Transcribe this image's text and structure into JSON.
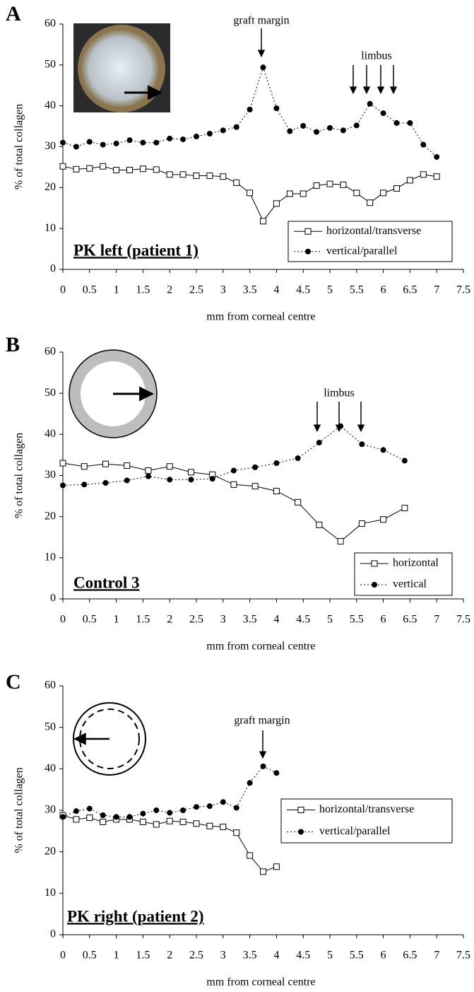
{
  "chart_data": [
    {
      "type": "line",
      "panel": "A",
      "label": "PK left (patient 1)",
      "annotations": [
        "graft margin",
        "limbus"
      ],
      "xlabel": "mm from corneal centre",
      "ylabel": "% of total collagen",
      "x": [
        0,
        0.25,
        0.5,
        0.75,
        1,
        1.25,
        1.5,
        1.75,
        2,
        2.25,
        2.5,
        2.75,
        3,
        3.25,
        3.5,
        3.75,
        4,
        4.25,
        4.5,
        4.75,
        5,
        5.25,
        5.5,
        5.75,
        6,
        6.25,
        6.5,
        6.75,
        7
      ],
      "series": [
        {
          "name": "horizontal/transverse",
          "color": "#000000",
          "line": "solid",
          "marker": "open-square",
          "values": [
            25.2,
            24.5,
            24.7,
            25.2,
            24.3,
            24.3,
            24.6,
            24.4,
            23.2,
            23.2,
            22.9,
            22.9,
            22.7,
            21.2,
            18.7,
            11.8,
            16.1,
            18.5,
            18.5,
            20.5,
            20.9,
            20.7,
            18.7,
            16.3,
            18.7,
            19.8,
            21.8,
            23.2,
            22.7
          ]
        },
        {
          "name": "vertical/parallel",
          "color": "#000000",
          "line": "dotted",
          "marker": "filled-circle",
          "values": [
            31,
            30,
            31.2,
            30.5,
            30.8,
            31.6,
            31,
            31,
            32,
            31.8,
            32.5,
            33.2,
            34,
            34.8,
            39.1,
            49.4,
            39.4,
            33.8,
            35.1,
            33.6,
            34.6,
            34,
            35.2,
            40.5,
            38.2,
            35.8,
            35.8,
            30.5,
            27.5
          ]
        }
      ],
      "xlim": [
        0,
        7.5
      ],
      "xticks": [
        0,
        0.5,
        1,
        1.5,
        2,
        2.5,
        3,
        3.5,
        4,
        4.5,
        5,
        5.5,
        6,
        6.5,
        7,
        7.5
      ],
      "ylim": [
        0,
        60
      ],
      "yticks": [
        0,
        10,
        20,
        30,
        40,
        50,
        60
      ],
      "grid": false,
      "legend": "lower-right"
    },
    {
      "type": "line",
      "panel": "B",
      "label": "Control 3",
      "annotations": [
        "limbus"
      ],
      "xlabel": "mm from corneal centre",
      "ylabel": "% of total collagen",
      "x": [
        0,
        0.4,
        0.8,
        1.2,
        1.6,
        2,
        2.4,
        2.8,
        3.2,
        3.6,
        4,
        4.4,
        4.8,
        5.2,
        5.6,
        6,
        6.4
      ],
      "series": [
        {
          "name": "horizontal",
          "color": "#000000",
          "line": "solid",
          "marker": "open-square",
          "values": [
            33,
            32.2,
            32.8,
            32.4,
            31.2,
            32.2,
            30.8,
            30.2,
            27.8,
            27.4,
            26.2,
            23.5,
            18,
            14,
            18.3,
            19.3,
            22.1
          ]
        },
        {
          "name": "vertical",
          "color": "#000000",
          "line": "dotted",
          "marker": "filled-circle",
          "values": [
            27.6,
            27.8,
            28.2,
            28.8,
            29.8,
            29,
            29,
            29.2,
            31.2,
            32,
            33,
            34.2,
            38,
            42,
            37.6,
            36.2,
            33.6
          ]
        }
      ],
      "xlim": [
        0,
        7.5
      ],
      "xticks": [
        0,
        0.5,
        1,
        1.5,
        2,
        2.5,
        3,
        3.5,
        4,
        4.5,
        5,
        5.5,
        6,
        6.5,
        7,
        7.5
      ],
      "ylim": [
        0,
        60
      ],
      "yticks": [
        0,
        10,
        20,
        30,
        40,
        50,
        60
      ],
      "grid": false,
      "legend": "lower-right"
    },
    {
      "type": "line",
      "panel": "C",
      "label": "PK right (patient 2)",
      "annotations": [
        "graft margin"
      ],
      "xlabel": "mm from corneal centre",
      "ylabel": "% of total collagen",
      "x": [
        0,
        0.25,
        0.5,
        0.75,
        1,
        1.25,
        1.5,
        1.75,
        2,
        2.25,
        2.5,
        2.75,
        3,
        3.25,
        3.5,
        3.75,
        4
      ],
      "series": [
        {
          "name": "horizontal/transverse",
          "color": "#000000",
          "line": "solid",
          "marker": "open-square",
          "values": [
            28.8,
            27.8,
            28.2,
            27.2,
            27.8,
            27.8,
            27.2,
            26.6,
            27.4,
            27.2,
            26.8,
            26.2,
            26,
            24.6,
            19.1,
            15.2,
            16.4
          ]
        },
        {
          "name": "vertical/parallel",
          "color": "#000000",
          "line": "dotted",
          "marker": "filled-circle",
          "values": [
            28.4,
            29.8,
            30.4,
            28.8,
            28.4,
            28.4,
            29.2,
            30,
            29.4,
            30,
            30.8,
            31,
            32,
            30.6,
            36.6,
            40.6,
            39
          ]
        }
      ],
      "xlim": [
        0,
        7.5
      ],
      "xticks": [
        0,
        0.5,
        1,
        1.5,
        2,
        2.5,
        3,
        3.5,
        4,
        4.5,
        5,
        5.5,
        6,
        6.5,
        7,
        7.5
      ],
      "ylim": [
        0,
        60
      ],
      "yticks": [
        0,
        10,
        20,
        30,
        40,
        50,
        60
      ],
      "grid": false,
      "legend": "right"
    }
  ]
}
